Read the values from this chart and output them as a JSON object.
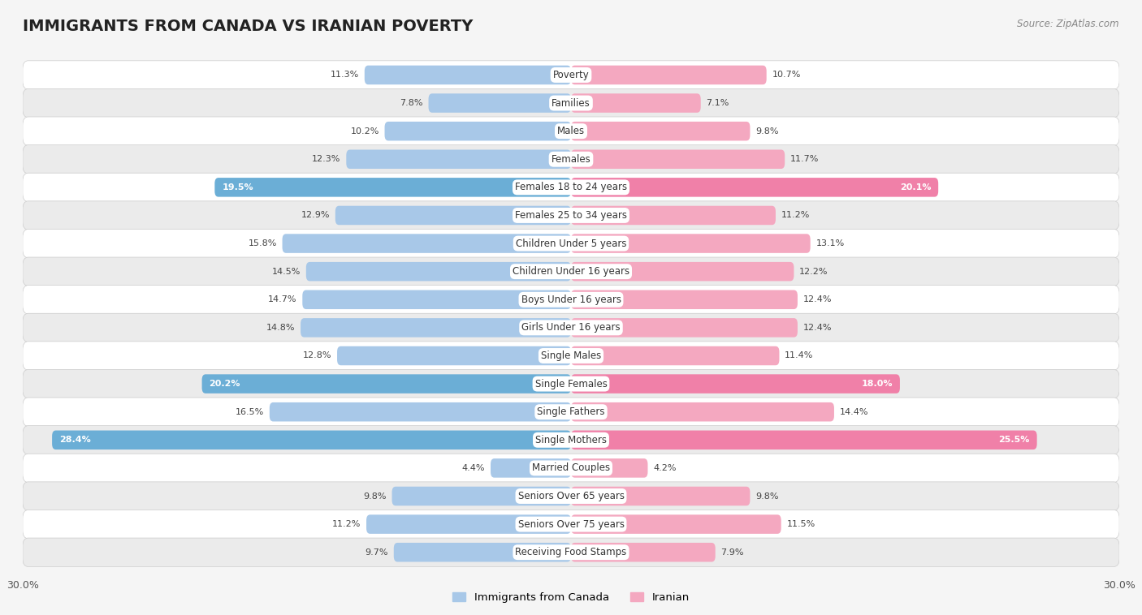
{
  "title": "IMMIGRANTS FROM CANADA VS IRANIAN POVERTY",
  "source": "Source: ZipAtlas.com",
  "categories": [
    "Poverty",
    "Families",
    "Males",
    "Females",
    "Females 18 to 24 years",
    "Females 25 to 34 years",
    "Children Under 5 years",
    "Children Under 16 years",
    "Boys Under 16 years",
    "Girls Under 16 years",
    "Single Males",
    "Single Females",
    "Single Fathers",
    "Single Mothers",
    "Married Couples",
    "Seniors Over 65 years",
    "Seniors Over 75 years",
    "Receiving Food Stamps"
  ],
  "left_values": [
    11.3,
    7.8,
    10.2,
    12.3,
    19.5,
    12.9,
    15.8,
    14.5,
    14.7,
    14.8,
    12.8,
    20.2,
    16.5,
    28.4,
    4.4,
    9.8,
    11.2,
    9.7
  ],
  "right_values": [
    10.7,
    7.1,
    9.8,
    11.7,
    20.1,
    11.2,
    13.1,
    12.2,
    12.4,
    12.4,
    11.4,
    18.0,
    14.4,
    25.5,
    4.2,
    9.8,
    11.5,
    7.9
  ],
  "left_color": "#a8c8e8",
  "right_color": "#f4a8c0",
  "left_highlight_color": "#6baed6",
  "right_highlight_color": "#f080a8",
  "highlight_rows": [
    4,
    11,
    13
  ],
  "left_label": "Immigrants from Canada",
  "right_label": "Iranian",
  "xlim": 30.0,
  "background_color": "#f5f5f5",
  "row_colors": [
    "#ffffff",
    "#ebebeb"
  ],
  "bar_height": 0.68,
  "title_fontsize": 14,
  "label_fontsize": 8.5,
  "value_fontsize": 8.0
}
